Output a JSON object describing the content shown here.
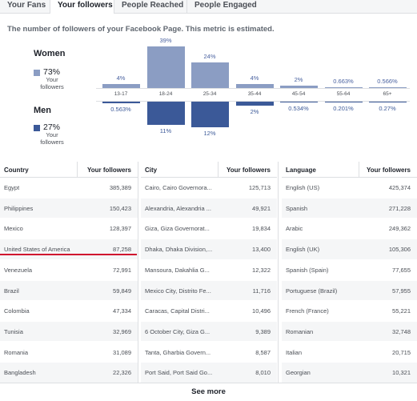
{
  "tabs": [
    "Your Fans",
    "Your followers",
    "People Reached",
    "People Engaged"
  ],
  "subtitle": "The number of followers of your Facebook Page. This metric is estimated.",
  "women": {
    "label": "Women",
    "pct": "73%",
    "sub": "Your followers",
    "color": "#8b9dc3"
  },
  "men": {
    "label": "Men",
    "pct": "27%",
    "sub": "Your followers",
    "color": "#3b5998"
  },
  "age_groups": [
    "13-17",
    "18-24",
    "25-34",
    "35-44",
    "45-54",
    "55-64",
    "65+"
  ],
  "women_pct": [
    "4%",
    "39%",
    "24%",
    "4%",
    "2%",
    "0.663%",
    "0.566%"
  ],
  "women_values": [
    4,
    39,
    24,
    4,
    2,
    0.663,
    0.566
  ],
  "men_pct": [
    "0.563%",
    "11%",
    "12%",
    "2%",
    "0.534%",
    "0.201%",
    "0.27%"
  ],
  "men_values": [
    0.563,
    11,
    12,
    2,
    0.534,
    0.201,
    0.27
  ],
  "country": {
    "header": "Country",
    "value_header": "Your followers",
    "rows": [
      [
        "Egypt",
        "385,389"
      ],
      [
        "Philippines",
        "150,423"
      ],
      [
        "Mexico",
        "128,397"
      ],
      [
        "United States of America",
        "87,258"
      ],
      [
        "Venezuela",
        "72,991"
      ],
      [
        "Brazil",
        "59,849"
      ],
      [
        "Colombia",
        "47,334"
      ],
      [
        "Tunisia",
        "32,969"
      ],
      [
        "Romania",
        "31,089"
      ],
      [
        "Bangladesh",
        "22,326"
      ]
    ]
  },
  "city": {
    "header": "City",
    "value_header": "Your followers",
    "rows": [
      [
        "Cairo, Cairo Governora...",
        "125,713"
      ],
      [
        "Alexandria, Alexandria ...",
        "49,921"
      ],
      [
        "Giza, Giza Governorat...",
        "19,834"
      ],
      [
        "Dhaka, Dhaka Division,...",
        "13,400"
      ],
      [
        "Mansoura, Dakahlia G...",
        "12,322"
      ],
      [
        "Mexico City, Distrito Fe...",
        "11,716"
      ],
      [
        "Caracas, Capital Distri...",
        "10,496"
      ],
      [
        "6 October City, Giza G...",
        "9,389"
      ],
      [
        "Tanta, Gharbia Govern...",
        "8,587"
      ],
      [
        "Port Said, Port Said Go...",
        "8,010"
      ]
    ]
  },
  "language": {
    "header": "Language",
    "value_header": "Your followers",
    "rows": [
      [
        "English (US)",
        "425,374"
      ],
      [
        "Spanish",
        "271,228"
      ],
      [
        "Arabic",
        "249,362"
      ],
      [
        "English (UK)",
        "105,306"
      ],
      [
        "Spanish (Spain)",
        "77,655"
      ],
      [
        "Portuguese (Brazil)",
        "57,955"
      ],
      [
        "French (France)",
        "55,221"
      ],
      [
        "Romanian",
        "32,748"
      ],
      [
        "Italian",
        "20,715"
      ],
      [
        "Georgian",
        "10,321"
      ]
    ]
  },
  "see_more": "See more"
}
